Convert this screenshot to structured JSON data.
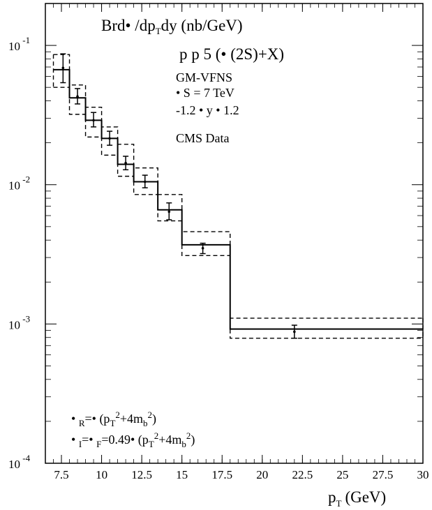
{
  "chart_data": {
    "type": "line",
    "xlabel": "p",
    "xlabel_sub": "T",
    "xlabel_unit": "(GeV)",
    "xlim": [
      6.5,
      30
    ],
    "ylim": [
      0.0001,
      0.2
    ],
    "log_y": true,
    "x_ticks": [
      7.5,
      10,
      12.5,
      15,
      17.5,
      20,
      22.5,
      25,
      27.5,
      30
    ],
    "x_tick_labels": [
      "7.5",
      "10",
      "12.5",
      "15",
      "17.5",
      "20",
      "22.5",
      "25",
      "27.5",
      "30"
    ],
    "y_ticks": [
      {
        "value": 0.1,
        "base": "10",
        "exp": "-1"
      },
      {
        "value": 0.01,
        "base": "10",
        "exp": "-2"
      },
      {
        "value": 0.001,
        "base": "10",
        "exp": "-3"
      },
      {
        "value": 0.0001,
        "base": "10",
        "exp": "-4"
      }
    ],
    "title": {
      "pre": "Brd• /dp",
      "sub": "T",
      "post": "dy (nb/GeV)"
    },
    "process": "p p 5   (•  (2S)+X)",
    "info_lines": [
      "GM-VFNS",
      "• S = 7 TeV",
      "-1.2 •   y •  1.2"
    ],
    "data_legend": "CMS Data",
    "scale_lines": [
      {
        "a": "• ",
        "a_sub": "R",
        "b": "=• (p",
        "b_sub": "T",
        "b_sup": "2",
        "c": "+4m",
        "c_sub": "b",
        "c_sup": "2",
        "d": ")"
      },
      {
        "a": "• ",
        "a_sub": "I",
        "b": "=• ",
        "b_sub": "F",
        "c": "=0.49• (p",
        "c_sub": "T",
        "c_sup": "2",
        "d": "+4m",
        "d_sub": "b",
        "d_sup": "2",
        "e": ")"
      }
    ],
    "bins": [
      {
        "lo": 7.0,
        "hi": 8.0,
        "central": 0.067,
        "upper": 0.086,
        "lower": 0.05
      },
      {
        "lo": 8.0,
        "hi": 9.0,
        "central": 0.042,
        "upper": 0.052,
        "lower": 0.032
      },
      {
        "lo": 9.0,
        "hi": 10.0,
        "central": 0.029,
        "upper": 0.036,
        "lower": 0.022
      },
      {
        "lo": 10.0,
        "hi": 11.0,
        "central": 0.0215,
        "upper": 0.026,
        "lower": 0.0163
      },
      {
        "lo": 11.0,
        "hi": 12.0,
        "central": 0.014,
        "upper": 0.0195,
        "lower": 0.0115
      },
      {
        "lo": 12.0,
        "hi": 13.5,
        "central": 0.0105,
        "upper": 0.0132,
        "lower": 0.0085
      },
      {
        "lo": 13.5,
        "hi": 15.0,
        "central": 0.0066,
        "upper": 0.0085,
        "lower": 0.0055
      },
      {
        "lo": 15.0,
        "hi": 18.0,
        "central": 0.0037,
        "upper": 0.0046,
        "lower": 0.0031
      },
      {
        "lo": 18.0,
        "hi": 30.0,
        "central": 0.00092,
        "upper": 0.0011,
        "lower": 0.00079
      }
    ],
    "data_points": [
      {
        "x": 7.6,
        "y": 0.069,
        "err_lo": 0.054,
        "err_hi": 0.087
      },
      {
        "x": 8.5,
        "y": 0.043,
        "err_lo": 0.038,
        "err_hi": 0.049
      },
      {
        "x": 9.5,
        "y": 0.029,
        "err_lo": 0.026,
        "err_hi": 0.033
      },
      {
        "x": 10.5,
        "y": 0.0215,
        "err_lo": 0.0192,
        "err_hi": 0.0242
      },
      {
        "x": 11.5,
        "y": 0.0143,
        "err_lo": 0.0128,
        "err_hi": 0.016
      },
      {
        "x": 12.7,
        "y": 0.0105,
        "err_lo": 0.0095,
        "err_hi": 0.0117
      },
      {
        "x": 14.2,
        "y": 0.0064,
        "err_lo": 0.0056,
        "err_hi": 0.0074
      },
      {
        "x": 16.3,
        "y": 0.0035,
        "err_lo": 0.0032,
        "err_hi": 0.0038
      },
      {
        "x": 22.0,
        "y": 0.00088,
        "err_lo": 0.00079,
        "err_hi": 0.00098
      }
    ]
  }
}
